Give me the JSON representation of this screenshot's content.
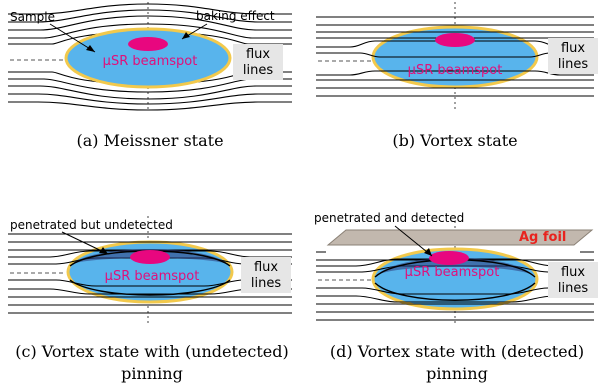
{
  "panels": [
    {
      "id": "a",
      "caption": [
        "(a) Meissner state"
      ],
      "beamspot": "μSR beamspot",
      "flux": [
        "flux",
        "lines"
      ],
      "annotations": [
        "Sample",
        "baking effect"
      ]
    },
    {
      "id": "b",
      "caption": [
        "(b) Vortex state"
      ],
      "beamspot": "μSR beamspot",
      "flux": [
        "flux",
        "lines"
      ],
      "annotations": []
    },
    {
      "id": "c",
      "caption": [
        "(c) Vortex state with (undetected)",
        "pinning"
      ],
      "beamspot": "μSR beamspot",
      "flux": [
        "flux",
        "lines"
      ],
      "annotations": [
        "penetrated but undetected"
      ]
    },
    {
      "id": "d",
      "caption": [
        "(d) Vortex state with (detected)",
        "pinning"
      ],
      "beamspot": "μSR beamspot",
      "flux": [
        "flux",
        "lines"
      ],
      "annotations": [
        "penetrated and detected",
        "Ag foil"
      ]
    }
  ],
  "colors": {
    "sample_fill": "#58b4ec",
    "sample_rim": "#f2c94c",
    "beamspot": "#e8077f",
    "beamspot_text": "#e0107a",
    "ag_foil": "#c2b8ae",
    "ag_text": "#e8231e",
    "flux_box": "#e6e6e6"
  }
}
